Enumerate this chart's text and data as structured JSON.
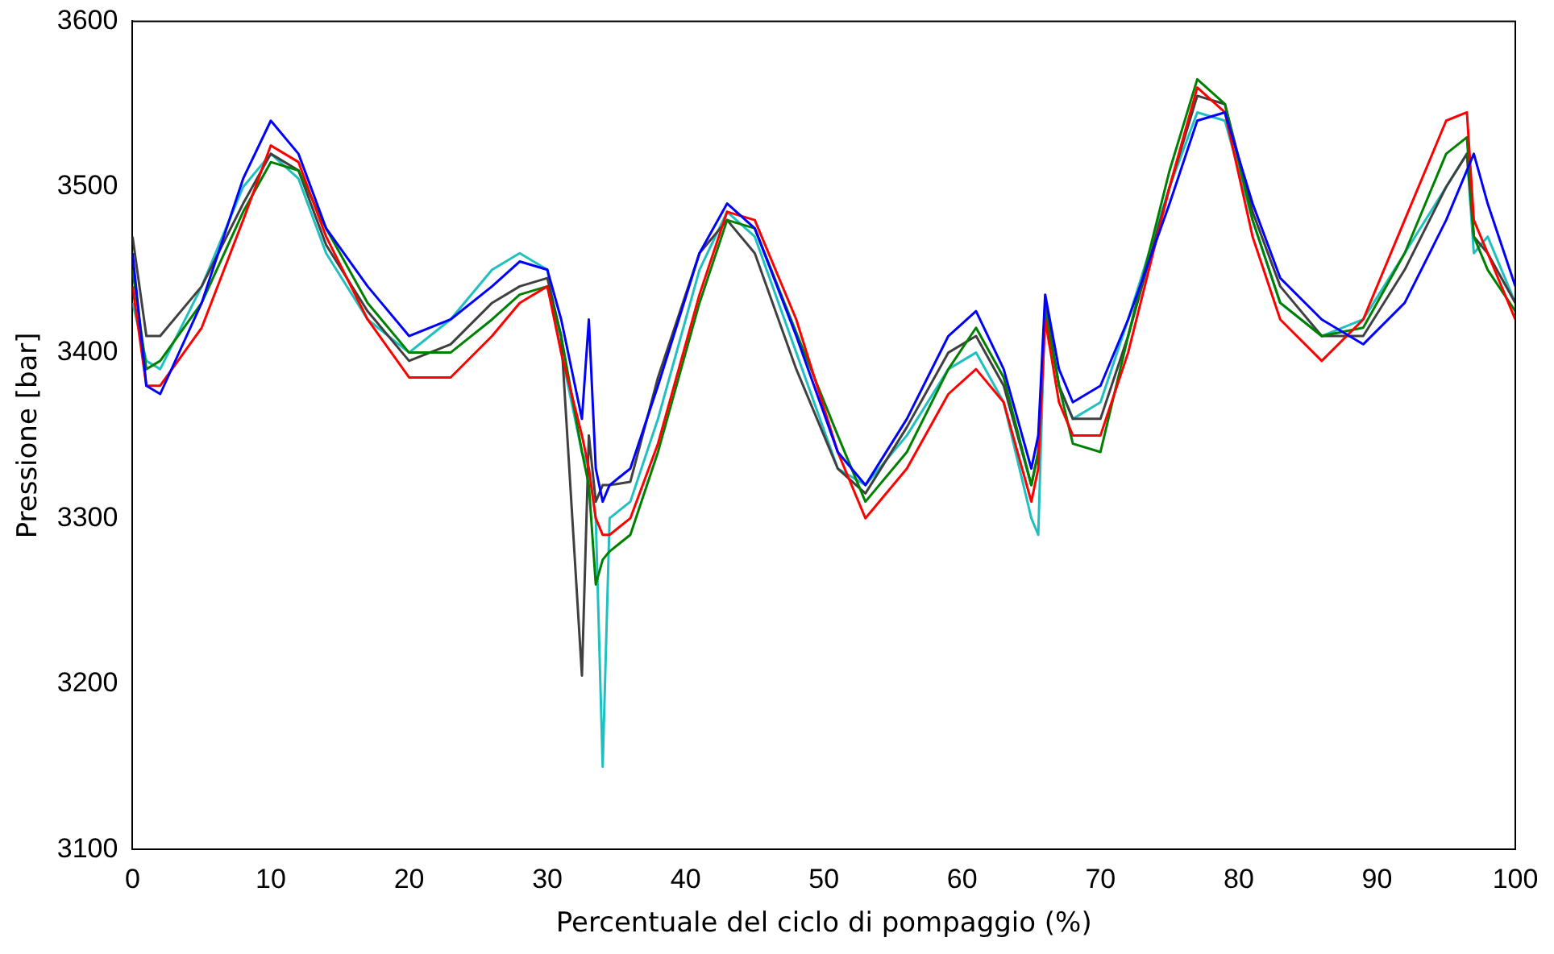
{
  "chart_data": {
    "type": "line",
    "xlabel": "Percentuale del ciclo di pompaggio (%)",
    "ylabel": "Pressione [bar]",
    "xlim": [
      0,
      100
    ],
    "ylim": [
      3100,
      3600
    ],
    "xticks": [
      0,
      10,
      20,
      30,
      40,
      50,
      60,
      70,
      80,
      90,
      100
    ],
    "yticks": [
      3100,
      3200,
      3300,
      3400,
      3500,
      3600
    ],
    "grid": false,
    "legend": false,
    "marker": "none",
    "line_style": "solid",
    "x": [
      0,
      1,
      2,
      5,
      8,
      10,
      12,
      14,
      17,
      20,
      23,
      26,
      28,
      30,
      31,
      32.5,
      33,
      33.5,
      34,
      34.5,
      36,
      38,
      41,
      43,
      45,
      48,
      51,
      53,
      56,
      59,
      61,
      63,
      65,
      65.5,
      66,
      67,
      68,
      70,
      72,
      75,
      77,
      79,
      81,
      83,
      86,
      89,
      92,
      95,
      96.5,
      97,
      98,
      100
    ],
    "series": [
      {
        "color": "#0000ff",
        "values": [
          3460,
          3380,
          3375,
          3430,
          3505,
          3540,
          3520,
          3475,
          3440,
          3410,
          3420,
          3440,
          3455,
          3450,
          3420,
          3360,
          3420,
          3330,
          3310,
          3320,
          3330,
          3380,
          3460,
          3490,
          3475,
          3410,
          3340,
          3320,
          3360,
          3410,
          3425,
          3390,
          3330,
          3350,
          3435,
          3390,
          3370,
          3380,
          3420,
          3490,
          3540,
          3545,
          3490,
          3445,
          3420,
          3405,
          3430,
          3480,
          3510,
          3520,
          3490,
          3440
        ]
      },
      {
        "color": "#ff0000",
        "values": [
          3440,
          3380,
          3380,
          3415,
          3480,
          3525,
          3515,
          3470,
          3420,
          3385,
          3385,
          3410,
          3430,
          3440,
          3400,
          3350,
          3330,
          3300,
          3290,
          3290,
          3300,
          3345,
          3435,
          3485,
          3480,
          3420,
          3340,
          3300,
          3330,
          3375,
          3390,
          3370,
          3310,
          3330,
          3420,
          3370,
          3350,
          3350,
          3400,
          3500,
          3560,
          3545,
          3470,
          3420,
          3395,
          3420,
          3480,
          3540,
          3545,
          3480,
          3460,
          3420
        ]
      },
      {
        "color": "#008000",
        "values": [
          3450,
          3390,
          3395,
          3430,
          3485,
          3515,
          3510,
          3475,
          3430,
          3400,
          3400,
          3420,
          3435,
          3440,
          3410,
          3340,
          3320,
          3260,
          3275,
          3280,
          3290,
          3340,
          3430,
          3480,
          3475,
          3412,
          3350,
          3310,
          3340,
          3390,
          3415,
          3385,
          3320,
          3340,
          3425,
          3380,
          3345,
          3340,
          3410,
          3510,
          3565,
          3550,
          3480,
          3430,
          3410,
          3415,
          3460,
          3520,
          3530,
          3470,
          3450,
          3425
        ]
      },
      {
        "color": "#404040",
        "values": [
          3470,
          3410,
          3410,
          3440,
          3490,
          3520,
          3510,
          3465,
          3425,
          3395,
          3405,
          3430,
          3440,
          3445,
          3410,
          3205,
          3350,
          3310,
          3320,
          3320,
          3322,
          3385,
          3460,
          3480,
          3460,
          3390,
          3330,
          3315,
          3355,
          3400,
          3410,
          3380,
          3320,
          3340,
          3430,
          3380,
          3360,
          3360,
          3410,
          3500,
          3555,
          3550,
          3485,
          3440,
          3410,
          3410,
          3450,
          3500,
          3520,
          3470,
          3460,
          3430
        ]
      },
      {
        "color": "#20c0c0",
        "values": [
          3430,
          3395,
          3390,
          3440,
          3500,
          3520,
          3505,
          3460,
          3420,
          3400,
          3420,
          3450,
          3460,
          3450,
          3400,
          3340,
          3330,
          3300,
          3150,
          3300,
          3310,
          3360,
          3450,
          3485,
          3470,
          3400,
          3330,
          3320,
          3350,
          3390,
          3400,
          3370,
          3300,
          3290,
          3430,
          3380,
          3360,
          3370,
          3420,
          3500,
          3545,
          3540,
          3480,
          3430,
          3410,
          3420,
          3460,
          3500,
          3520,
          3460,
          3470,
          3430
        ]
      }
    ]
  }
}
